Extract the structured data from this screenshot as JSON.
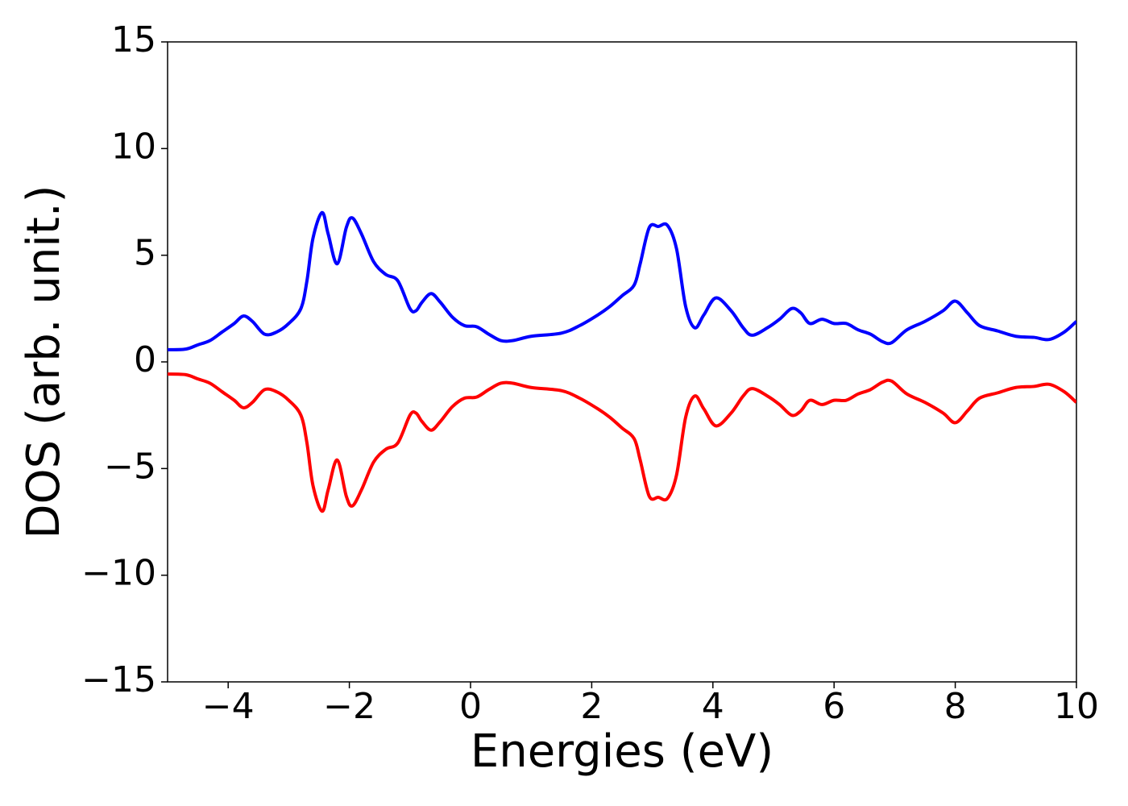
{
  "chart_data": {
    "type": "line",
    "xlabel": "Energies (eV)",
    "ylabel": "DOS (arb. unit.)",
    "xlim": [
      -5,
      10
    ],
    "ylim": [
      -15,
      15
    ],
    "xticks": [
      {
        "value": -4,
        "label": "−4"
      },
      {
        "value": -2,
        "label": "−2"
      },
      0,
      2,
      4,
      6,
      8,
      10
    ],
    "yticks": [
      {
        "value": -15,
        "label": "−15"
      },
      {
        "value": -10,
        "label": "−10"
      },
      {
        "value": -5,
        "label": "−5"
      },
      0,
      5,
      10,
      15
    ],
    "grid": false,
    "x": [
      -5,
      -4.7,
      -4.5,
      -4.3,
      -4.1,
      -3.9,
      -3.75,
      -3.6,
      -3.4,
      -3.2,
      -3.0,
      -2.8,
      -2.7,
      -2.6,
      -2.45,
      -2.35,
      -2.2,
      -2.05,
      -1.95,
      -1.8,
      -1.6,
      -1.4,
      -1.2,
      -1.0,
      -0.9,
      -0.8,
      -0.65,
      -0.5,
      -0.3,
      -0.1,
      0.1,
      0.3,
      0.5,
      0.7,
      1.0,
      1.5,
      1.8,
      2.1,
      2.3,
      2.5,
      2.7,
      2.8,
      2.95,
      3.1,
      3.25,
      3.4,
      3.55,
      3.7,
      3.85,
      4.05,
      4.3,
      4.5,
      4.65,
      4.9,
      5.1,
      5.3,
      5.45,
      5.6,
      5.8,
      6.0,
      6.2,
      6.4,
      6.6,
      6.8,
      6.95,
      7.2,
      7.5,
      7.8,
      8.0,
      8.2,
      8.4,
      8.7,
      9.0,
      9.3,
      9.55,
      9.8,
      10
    ],
    "series": [
      {
        "color": "#0000ff",
        "values": [
          0.57,
          0.6,
          0.8,
          1.0,
          1.4,
          1.8,
          2.15,
          1.9,
          1.3,
          1.4,
          1.8,
          2.5,
          3.8,
          5.8,
          7.0,
          6.0,
          4.6,
          6.3,
          6.75,
          6.0,
          4.7,
          4.1,
          3.8,
          2.5,
          2.4,
          2.8,
          3.2,
          2.8,
          2.1,
          1.7,
          1.65,
          1.3,
          1.0,
          1.0,
          1.2,
          1.35,
          1.7,
          2.2,
          2.6,
          3.1,
          3.6,
          4.6,
          6.3,
          6.35,
          6.4,
          5.3,
          2.6,
          1.6,
          2.2,
          3.0,
          2.4,
          1.6,
          1.25,
          1.6,
          2.0,
          2.5,
          2.3,
          1.8,
          2.0,
          1.8,
          1.8,
          1.5,
          1.3,
          0.95,
          0.9,
          1.5,
          1.9,
          2.4,
          2.85,
          2.3,
          1.7,
          1.45,
          1.2,
          1.15,
          1.05,
          1.4,
          1.9
        ]
      },
      {
        "color": "#ff0000",
        "values": [
          -0.57,
          -0.6,
          -0.8,
          -1.0,
          -1.4,
          -1.8,
          -2.15,
          -1.9,
          -1.3,
          -1.4,
          -1.8,
          -2.5,
          -3.8,
          -5.8,
          -7.0,
          -6.0,
          -4.6,
          -6.3,
          -6.75,
          -6.0,
          -4.7,
          -4.1,
          -3.8,
          -2.5,
          -2.4,
          -2.8,
          -3.2,
          -2.8,
          -2.1,
          -1.7,
          -1.65,
          -1.3,
          -1.0,
          -1.0,
          -1.2,
          -1.35,
          -1.7,
          -2.2,
          -2.6,
          -3.1,
          -3.6,
          -4.6,
          -6.3,
          -6.35,
          -6.4,
          -5.3,
          -2.6,
          -1.6,
          -2.2,
          -3.0,
          -2.4,
          -1.6,
          -1.25,
          -1.6,
          -2.0,
          -2.5,
          -2.3,
          -1.8,
          -2.0,
          -1.8,
          -1.8,
          -1.5,
          -1.3,
          -0.95,
          -0.9,
          -1.5,
          -1.9,
          -2.4,
          -2.85,
          -2.3,
          -1.7,
          -1.45,
          -1.2,
          -1.15,
          -1.05,
          -1.4,
          -1.9
        ]
      }
    ]
  }
}
